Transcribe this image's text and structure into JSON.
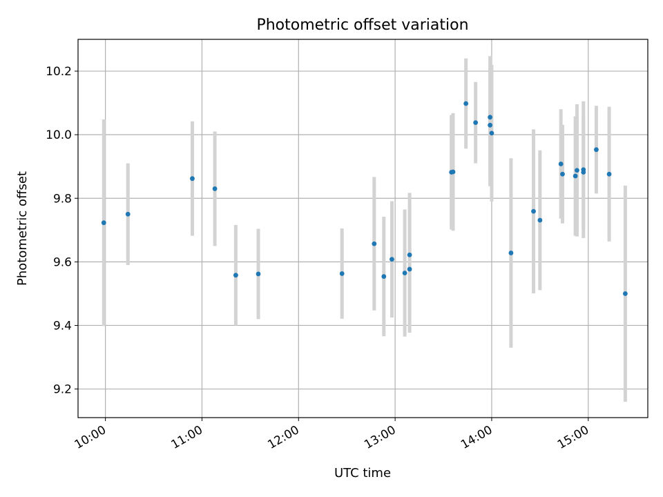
{
  "chart_data": {
    "type": "scatter",
    "title": "Photometric offset variation",
    "xlabel": "UTC time",
    "ylabel": "Photometric offset",
    "x_unit": "UTC time (HH:MM)",
    "x_range": [
      "09:43",
      "15:37"
    ],
    "ylim": [
      9.11,
      10.3
    ],
    "xticks": [
      "10:00",
      "11:00",
      "12:00",
      "13:00",
      "14:00",
      "15:00"
    ],
    "yticks": [
      9.2,
      9.4,
      9.6,
      9.8,
      10.0,
      10.2
    ],
    "ytick_labels": [
      "9.2",
      "9.4",
      "9.6",
      "9.8",
      "10.0",
      "10.2"
    ],
    "xtick_rotation": 30,
    "grid": true,
    "colors": {
      "points": "#1f77b4",
      "error_bars": "#d3d3d3",
      "grid": "#b0b0b0"
    },
    "points": [
      {
        "x": "09:59",
        "y": 9.723,
        "err": 0.325
      },
      {
        "x": "10:14",
        "y": 9.75,
        "err": 0.16
      },
      {
        "x": "10:54",
        "y": 9.862,
        "err": 0.18
      },
      {
        "x": "11:08",
        "y": 9.83,
        "err": 0.18
      },
      {
        "x": "11:21",
        "y": 9.558,
        "err": 0.158
      },
      {
        "x": "11:35",
        "y": 9.562,
        "err": 0.142
      },
      {
        "x": "12:27",
        "y": 9.563,
        "err": 0.142
      },
      {
        "x": "12:47",
        "y": 9.657,
        "err": 0.21
      },
      {
        "x": "12:53",
        "y": 9.554,
        "err": 0.188
      },
      {
        "x": "12:58",
        "y": 9.608,
        "err": 0.183
      },
      {
        "x": "13:06",
        "y": 9.565,
        "err": 0.2
      },
      {
        "x": "13:09",
        "y": 9.622,
        "err": 0.195
      },
      {
        "x": "13:09",
        "y": 9.577,
        "err": 0.2
      },
      {
        "x": "13:35",
        "y": 9.882,
        "err": 0.18
      },
      {
        "x": "13:36",
        "y": 9.883,
        "err": 0.185
      },
      {
        "x": "13:44",
        "y": 10.098,
        "err": 0.142
      },
      {
        "x": "13:50",
        "y": 10.038,
        "err": 0.128
      },
      {
        "x": "13:59",
        "y": 10.055,
        "err": 0.192
      },
      {
        "x": "13:59",
        "y": 10.03,
        "err": 0.192
      },
      {
        "x": "14:00",
        "y": 10.005,
        "err": 0.215
      },
      {
        "x": "14:12",
        "y": 9.628,
        "err": 0.298
      },
      {
        "x": "14:26",
        "y": 9.759,
        "err": 0.258
      },
      {
        "x": "14:30",
        "y": 9.731,
        "err": 0.22
      },
      {
        "x": "14:43",
        "y": 9.908,
        "err": 0.172
      },
      {
        "x": "14:44",
        "y": 9.876,
        "err": 0.155
      },
      {
        "x": "14:52",
        "y": 9.87,
        "err": 0.188
      },
      {
        "x": "14:53",
        "y": 9.888,
        "err": 0.208
      },
      {
        "x": "14:57",
        "y": 9.89,
        "err": 0.215
      },
      {
        "x": "14:57",
        "y": 9.882,
        "err": 0.175
      },
      {
        "x": "15:05",
        "y": 9.953,
        "err": 0.138
      },
      {
        "x": "15:13",
        "y": 9.876,
        "err": 0.212
      },
      {
        "x": "15:23",
        "y": 9.5,
        "err": 0.34
      }
    ]
  }
}
